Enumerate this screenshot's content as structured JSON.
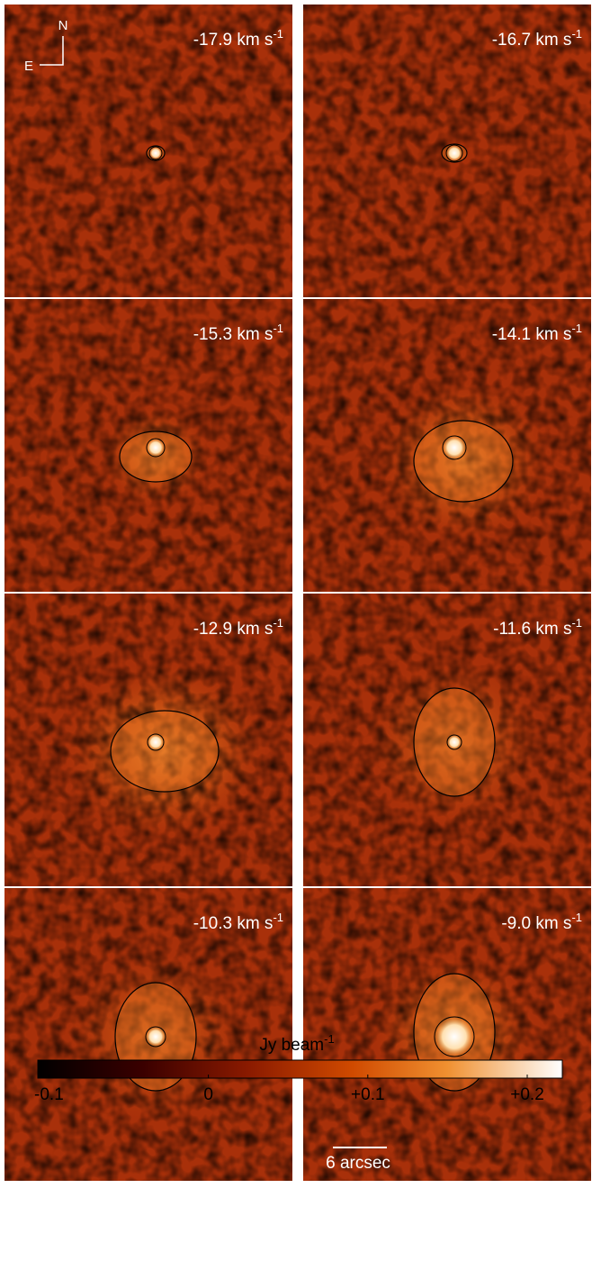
{
  "panels": [
    {
      "label": "-17.9 km s",
      "sup": "-1"
    },
    {
      "label": "-16.7 km s",
      "sup": "-1"
    },
    {
      "label": "-15.3 km s",
      "sup": "-1"
    },
    {
      "label": "-14.1 km s",
      "sup": "-1"
    },
    {
      "label": "-12.9 km s",
      "sup": "-1"
    },
    {
      "label": "-11.6 km s",
      "sup": "-1"
    },
    {
      "label": "-10.3 km s",
      "sup": "-1"
    },
    {
      "label": "-9.0 km s",
      "sup": "-1"
    }
  ],
  "compass": {
    "north": "N",
    "east": "E"
  },
  "scale_bar": "6 arcsec",
  "colorbar": {
    "title": "Jy beam",
    "title_sup": "-1",
    "lim": [
      -0.107,
      0.222
    ],
    "ticks": [
      {
        "value": -0.1,
        "label": "-0.1"
      },
      0,
      {
        "value": 0.1,
        "label": "+0.1"
      },
      {
        "value": 0.2,
        "label": "+0.2"
      }
    ]
  }
}
